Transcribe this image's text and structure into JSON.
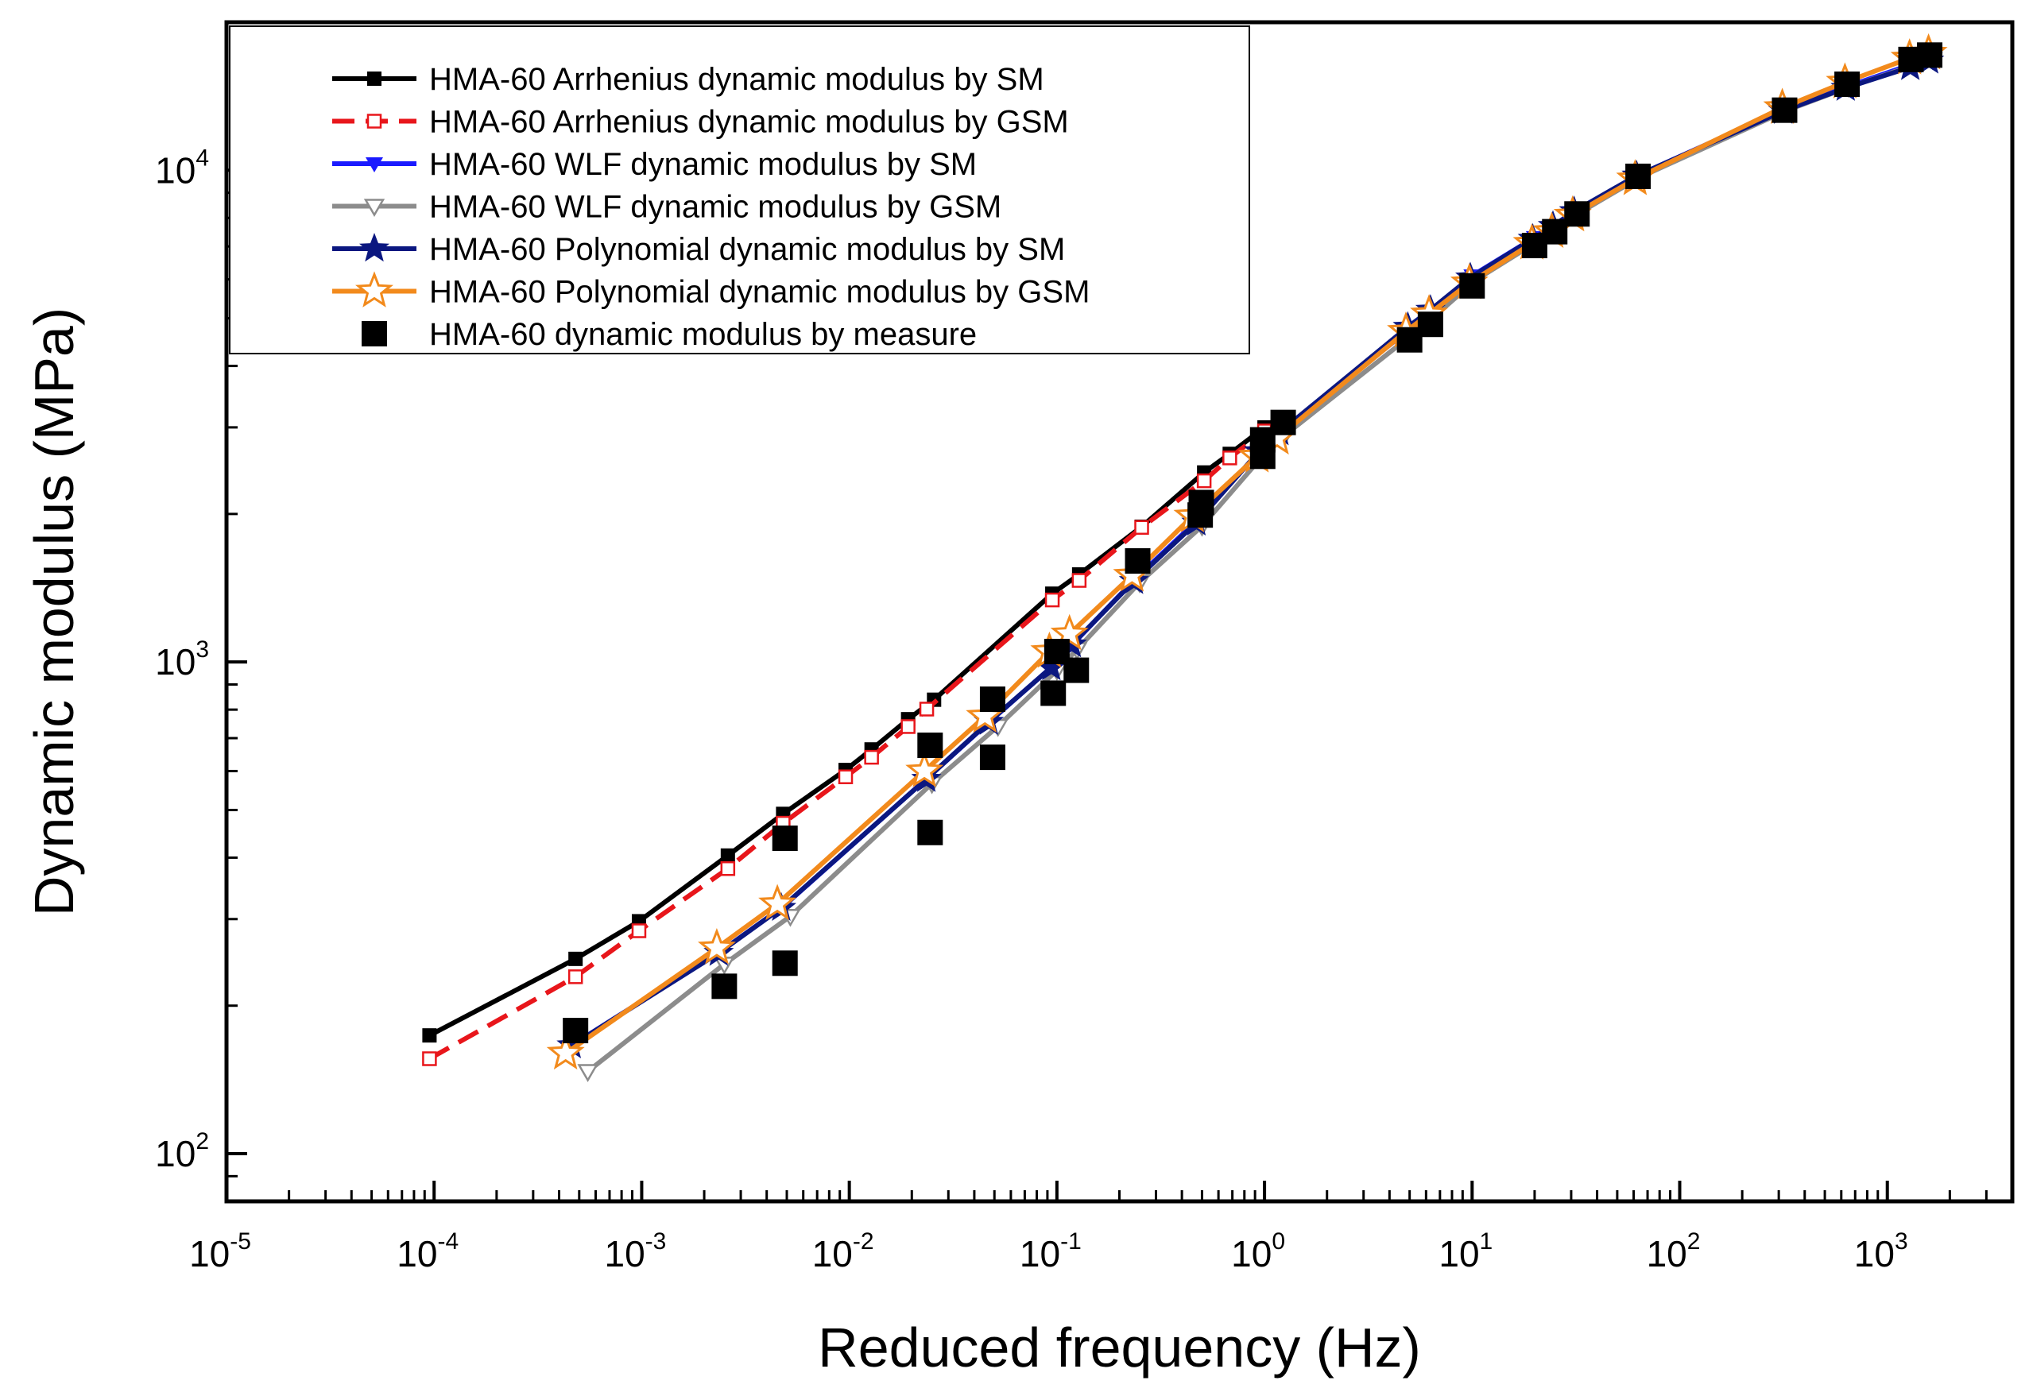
{
  "chart_data": {
    "type": "line",
    "xscale": "log",
    "yscale": "log",
    "xlabel": "Reduced frequency (Hz)",
    "ylabel": "Dynamic modulus (MPa)",
    "xlim": [
      1e-05,
      4000
    ],
    "ylim": [
      80,
      20000
    ],
    "x_ticks": [
      {
        "base": "10",
        "exp": "-5",
        "value": 1e-05
      },
      {
        "base": "10",
        "exp": "-4",
        "value": 0.0001
      },
      {
        "base": "10",
        "exp": "-3",
        "value": 0.001
      },
      {
        "base": "10",
        "exp": "-2",
        "value": 0.01
      },
      {
        "base": "10",
        "exp": "-1",
        "value": 0.1
      },
      {
        "base": "10",
        "exp": "0",
        "value": 1
      },
      {
        "base": "10",
        "exp": "1",
        "value": 10
      },
      {
        "base": "10",
        "exp": "2",
        "value": 100
      },
      {
        "base": "10",
        "exp": "3",
        "value": 1000
      }
    ],
    "y_ticks": [
      {
        "base": "10",
        "exp": "2",
        "value": 100
      },
      {
        "base": "10",
        "exp": "3",
        "value": 1000
      },
      {
        "base": "10",
        "exp": "4",
        "value": 10000
      }
    ],
    "legend_position": "top-left",
    "series": [
      {
        "name": "HMA-60 Arrhenius dynamic modulus by SM",
        "color": "#000000",
        "dash": "solid",
        "marker": "square-filled",
        "x": [
          9.5e-05,
          0.00048,
          0.00097,
          0.0026,
          0.0048,
          0.0096,
          0.0128,
          0.0192,
          0.0256,
          0.095,
          0.128,
          0.256,
          0.512,
          0.68,
          1.0
        ],
        "y": [
          174,
          249,
          297,
          404,
          491,
          603,
          664,
          765,
          838,
          1377,
          1507,
          1884,
          2429,
          2650,
          3000
        ]
      },
      {
        "name": "HMA-60 Arrhenius dynamic modulus by GSM",
        "color": "#e8161b",
        "dash": "dashed",
        "marker": "square-open",
        "x": [
          9.5e-05,
          0.00048,
          0.00097,
          0.0026,
          0.0048,
          0.0096,
          0.0128,
          0.0192,
          0.0236,
          0.095,
          0.128,
          0.256,
          0.512,
          0.68,
          1.0
        ],
        "y": [
          156,
          229,
          284,
          380,
          470,
          584,
          640,
          739,
          802,
          1337,
          1465,
          1878,
          2336,
          2600,
          2950
        ]
      },
      {
        "name": "HMA-60 WLF dynamic modulus by SM",
        "color": "#1a1aff",
        "dash": "solid",
        "marker": "triangle-down-filled",
        "x": [
          0.00048,
          0.0024,
          0.0048,
          0.024,
          0.048,
          0.096,
          0.12,
          0.24,
          0.48,
          0.96,
          1.2,
          5.0,
          6.4,
          10,
          20,
          25,
          32,
          64,
          320,
          640,
          1300,
          1600
        ],
        "y": [
          168,
          258,
          318,
          583,
          760,
          983,
          1090,
          1480,
          1950,
          2700,
          2950,
          4750,
          5150,
          6100,
          7300,
          7650,
          8300,
          9800,
          13300,
          14800,
          16400,
          16900
        ]
      },
      {
        "name": "HMA-60 WLF dynamic modulus by GSM",
        "color": "#8c8c8c",
        "dash": "solid",
        "marker": "triangle-down-open",
        "x": [
          0.00055,
          0.0025,
          0.0052,
          0.025,
          0.052,
          0.1,
          0.125,
          0.25,
          0.5,
          1.0,
          1.25,
          5.2,
          6.6,
          10.4,
          20.5,
          25.6,
          33,
          65,
          330,
          650,
          1330,
          1650
        ],
        "y": [
          147,
          243,
          304,
          566,
          740,
          962,
          1060,
          1450,
          1890,
          2650,
          2890,
          4650,
          5050,
          5980,
          7150,
          7550,
          8200,
          9700,
          13250,
          14750,
          16350,
          16800
        ]
      },
      {
        "name": "HMA-60 Polynomial dynamic modulus by SM",
        "color": "#0b1780",
        "dash": "solid",
        "marker": "star-filled",
        "x": [
          0.00046,
          0.00235,
          0.0047,
          0.0235,
          0.047,
          0.094,
          0.118,
          0.235,
          0.47,
          0.94,
          1.18,
          4.9,
          6.3,
          9.8,
          19.6,
          24.5,
          31,
          62,
          315,
          630,
          1290,
          1590
        ],
        "y": [
          166,
          256,
          316,
          578,
          755,
          975,
          1085,
          1460,
          1920,
          2680,
          2930,
          4800,
          5200,
          6050,
          7250,
          7700,
          8250,
          9750,
          13200,
          14700,
          16200,
          16700
        ]
      },
      {
        "name": "HMA-60 Polynomial dynamic modulus by GSM",
        "color": "#f28a1c",
        "dash": "solid",
        "marker": "star-open",
        "x": [
          0.00043,
          0.0023,
          0.0045,
          0.023,
          0.045,
          0.092,
          0.115,
          0.23,
          0.45,
          0.92,
          1.15,
          4.8,
          6.2,
          9.7,
          19.4,
          24.2,
          30.5,
          61,
          312,
          625,
          1280,
          1580
        ],
        "y": [
          160,
          262,
          322,
          600,
          775,
          1050,
          1140,
          1500,
          1980,
          2620,
          2850,
          4700,
          5100,
          5900,
          7100,
          7500,
          8100,
          9600,
          13400,
          15100,
          16900,
          17300
        ]
      },
      {
        "name": "HMA-60 dynamic modulus by measure",
        "color": "#000000",
        "dash": "none",
        "marker": "square-filled-large",
        "x": [
          0.00048,
          0.0025,
          0.0049,
          0.0049,
          0.0245,
          0.0245,
          0.049,
          0.049,
          0.096,
          0.1,
          0.124,
          0.245,
          0.49,
          0.496,
          0.98,
          0.98,
          1.23,
          5.0,
          6.3,
          10,
          20,
          25,
          32,
          63,
          320,
          640,
          1300,
          1600
        ],
        "y": [
          178,
          219,
          244,
          438,
          450,
          677,
          640,
          840,
          864,
          1050,
          962,
          1605,
          1990,
          2110,
          2620,
          2830,
          3070,
          4520,
          4860,
          5820,
          7030,
          7500,
          8150,
          9720,
          13250,
          14960,
          16800,
          17150
        ]
      }
    ]
  }
}
